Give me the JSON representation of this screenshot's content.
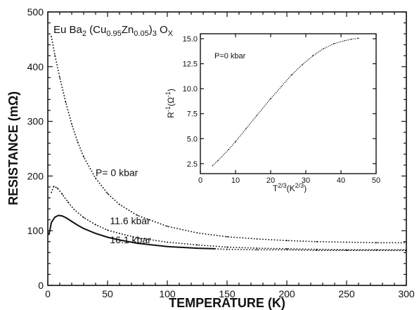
{
  "chart_data": [
    {
      "type": "scatter",
      "title": "Eu Ba2 (Cu0.95Zn0.05)3 Ox",
      "title_parts": {
        "a": "Eu Ba",
        "b": "2",
        "c": " (Cu",
        "d": "0.95",
        "e": "Zn",
        "f": "0.05",
        "g": ")",
        "h": "3",
        "i": " O",
        "j": "X"
      },
      "xlabel": "TEMPERATURE (K)",
      "ylabel": "RESISTANCE (mΩ)",
      "xlim": [
        0,
        300
      ],
      "ylim": [
        0,
        500
      ],
      "x_ticks": [
        0,
        50,
        100,
        150,
        200,
        250,
        300
      ],
      "y_ticks": [
        0,
        100,
        200,
        300,
        400,
        500
      ],
      "grid": false,
      "series": [
        {
          "name": "P= 0 kbar",
          "label_at": [
            40,
            200
          ],
          "style": "dotted",
          "points": [
            [
              3,
              455
            ],
            [
              6,
              420
            ],
            [
              10,
              380
            ],
            [
              15,
              335
            ],
            [
              20,
              295
            ],
            [
              25,
              262
            ],
            [
              30,
              235
            ],
            [
              40,
              196
            ],
            [
              50,
              168
            ],
            [
              60,
              148
            ],
            [
              75,
              128
            ],
            [
              100,
              108
            ],
            [
              125,
              96
            ],
            [
              150,
              89
            ],
            [
              175,
              85
            ],
            [
              200,
              82
            ],
            [
              225,
              80
            ],
            [
              250,
              79
            ],
            [
              275,
              78
            ],
            [
              300,
              78
            ]
          ]
        },
        {
          "name": "11.6 kbar",
          "label_at": [
            52,
            112
          ],
          "style": "dotted",
          "points": [
            [
              3,
              170
            ],
            [
              5,
              181
            ],
            [
              8,
              178
            ],
            [
              12,
              167
            ],
            [
              17,
              152
            ],
            [
              22,
              139
            ],
            [
              30,
              124
            ],
            [
              40,
              111
            ],
            [
              50,
              101
            ],
            [
              60,
              95
            ],
            [
              75,
              87
            ],
            [
              100,
              79
            ],
            [
              125,
              74
            ],
            [
              150,
              70
            ],
            [
              175,
              68
            ],
            [
              200,
              67
            ],
            [
              225,
              66
            ],
            [
              250,
              65
            ],
            [
              275,
              65
            ],
            [
              300,
              65
            ]
          ]
        },
        {
          "name": "16.1 kbar",
          "label_at": [
            52,
            77
          ],
          "style": "solid-to-dotted",
          "points": [
            [
              1,
              93
            ],
            [
              3,
              115
            ],
            [
              6,
              125
            ],
            [
              9,
              128
            ],
            [
              12,
              127
            ],
            [
              15,
              124
            ],
            [
              20,
              117
            ],
            [
              25,
              110
            ],
            [
              30,
              104
            ],
            [
              40,
              95
            ],
            [
              50,
              88
            ],
            [
              60,
              83
            ],
            [
              75,
              77
            ],
            [
              100,
              71
            ],
            [
              125,
              68
            ],
            [
              140,
              67
            ],
            [
              150,
              66
            ],
            [
              175,
              65
            ],
            [
              200,
              65
            ],
            [
              225,
              64
            ],
            [
              250,
              64
            ],
            [
              275,
              64
            ],
            [
              300,
              64
            ]
          ]
        }
      ]
    },
    {
      "type": "line",
      "title": "P=0 kbar",
      "xlabel": "T2/3(K2/3)",
      "xlabel_parts": {
        "a": "T",
        "b": "2/3",
        "c": "(K",
        "d": "2/3",
        "e": ")"
      },
      "ylabel": "R-1(Ω-1)",
      "ylabel_parts": {
        "a": "R",
        "b": "-1",
        "c": "(Ω",
        "d": "-1",
        "e": ")"
      },
      "xlim": [
        0,
        50
      ],
      "ylim": [
        1.5,
        15.5
      ],
      "x_ticks": [
        0,
        10,
        20,
        30,
        40,
        50
      ],
      "y_ticks": [
        2.5,
        5.0,
        7.5,
        10.0,
        12.5,
        15.0
      ],
      "y_tick_labels": [
        "2.5",
        "5.0",
        "7.5",
        "10.0",
        "12.5",
        "15.0"
      ],
      "grid": false,
      "series": [
        {
          "name": "",
          "x": [
            3.5,
            5,
            8,
            10,
            13,
            16,
            20,
            23,
            26,
            29,
            32,
            35,
            38,
            41,
            43,
            45
          ],
          "y": [
            2.3,
            2.8,
            3.9,
            4.7,
            6.0,
            7.3,
            9.0,
            10.2,
            11.4,
            12.4,
            13.3,
            14.0,
            14.5,
            14.8,
            14.95,
            15.05
          ]
        }
      ]
    }
  ]
}
